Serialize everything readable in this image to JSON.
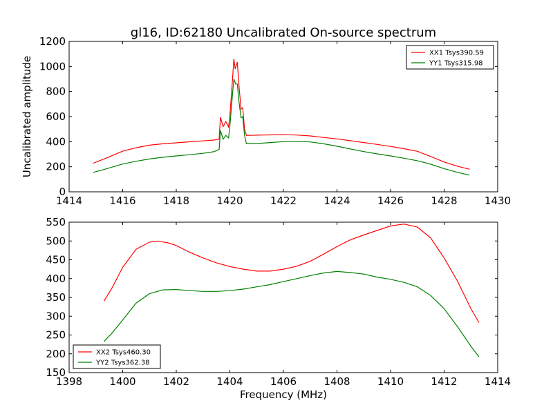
{
  "chart_data": [
    {
      "type": "line",
      "title": "gl16, ID:62180 Uncalibrated On-source spectrum",
      "ylabel": "Uncalibrated amplitude",
      "xlabel": "",
      "xlim": [
        1414,
        1430
      ],
      "ylim": [
        0,
        1200
      ],
      "xticks": [
        1414,
        1416,
        1418,
        1420,
        1422,
        1424,
        1426,
        1428,
        1430
      ],
      "yticks": [
        0,
        200,
        400,
        600,
        800,
        1000,
        1200
      ],
      "grid": false,
      "legend": "top-right",
      "series": [
        {
          "name": "XX1 Tsys390.59",
          "color": "#ff0000",
          "points": [
            [
              1414.9,
              228
            ],
            [
              1415.3,
              262
            ],
            [
              1415.7,
              298
            ],
            [
              1416.0,
              324
            ],
            [
              1416.5,
              352
            ],
            [
              1417.0,
              372
            ],
            [
              1417.5,
              383
            ],
            [
              1418.0,
              391
            ],
            [
              1418.5,
              399
            ],
            [
              1419.0,
              406
            ],
            [
              1419.4,
              413
            ],
            [
              1419.6,
              420
            ],
            [
              1419.65,
              595
            ],
            [
              1419.75,
              520
            ],
            [
              1419.85,
              560
            ],
            [
              1419.95,
              518
            ],
            [
              1420.0,
              600
            ],
            [
              1420.1,
              900
            ],
            [
              1420.15,
              1060
            ],
            [
              1420.2,
              980
            ],
            [
              1420.28,
              1035
            ],
            [
              1420.35,
              820
            ],
            [
              1420.42,
              660
            ],
            [
              1420.48,
              670
            ],
            [
              1420.55,
              500
            ],
            [
              1420.62,
              450
            ],
            [
              1421.0,
              452
            ],
            [
              1421.5,
              454
            ],
            [
              1422.0,
              456
            ],
            [
              1422.5,
              453
            ],
            [
              1423.0,
              446
            ],
            [
              1423.5,
              434
            ],
            [
              1424.0,
              422
            ],
            [
              1424.5,
              408
            ],
            [
              1425.0,
              393
            ],
            [
              1425.5,
              378
            ],
            [
              1426.0,
              362
            ],
            [
              1426.5,
              344
            ],
            [
              1427.0,
              323
            ],
            [
              1427.5,
              282
            ],
            [
              1428.0,
              238
            ],
            [
              1428.5,
              204
            ],
            [
              1428.95,
              180
            ]
          ]
        },
        {
          "name": "YY1 Tsys315.98",
          "color": "#008000",
          "points": [
            [
              1414.9,
              155
            ],
            [
              1415.3,
              178
            ],
            [
              1415.7,
              203
            ],
            [
              1416.0,
              222
            ],
            [
              1416.5,
              244
            ],
            [
              1417.0,
              262
            ],
            [
              1417.5,
              276
            ],
            [
              1418.0,
              286
            ],
            [
              1418.5,
              296
            ],
            [
              1419.0,
              307
            ],
            [
              1419.4,
              320
            ],
            [
              1419.6,
              338
            ],
            [
              1419.65,
              490
            ],
            [
              1419.75,
              420
            ],
            [
              1419.85,
              450
            ],
            [
              1419.95,
              430
            ],
            [
              1420.0,
              520
            ],
            [
              1420.1,
              780
            ],
            [
              1420.15,
              900
            ],
            [
              1420.22,
              860
            ],
            [
              1420.28,
              860
            ],
            [
              1420.35,
              700
            ],
            [
              1420.42,
              590
            ],
            [
              1420.48,
              600
            ],
            [
              1420.55,
              450
            ],
            [
              1420.62,
              383
            ],
            [
              1421.0,
              385
            ],
            [
              1421.5,
              393
            ],
            [
              1422.0,
              400
            ],
            [
              1422.5,
              403
            ],
            [
              1423.0,
              398
            ],
            [
              1423.5,
              383
            ],
            [
              1424.0,
              364
            ],
            [
              1424.5,
              342
            ],
            [
              1425.0,
              321
            ],
            [
              1425.5,
              303
            ],
            [
              1426.0,
              286
            ],
            [
              1426.5,
              268
            ],
            [
              1427.0,
              248
            ],
            [
              1427.5,
              220
            ],
            [
              1428.0,
              185
            ],
            [
              1428.5,
              155
            ],
            [
              1428.95,
              133
            ]
          ]
        }
      ]
    },
    {
      "type": "line",
      "title": "",
      "xlabel": "Frequency (MHz)",
      "ylabel": "",
      "xlim": [
        1398,
        1414
      ],
      "ylim": [
        150,
        550
      ],
      "xticks": [
        1398,
        1400,
        1402,
        1404,
        1406,
        1408,
        1410,
        1412,
        1414
      ],
      "yticks": [
        150,
        200,
        250,
        300,
        350,
        400,
        450,
        500,
        550
      ],
      "grid": false,
      "legend": "bottom-left",
      "series": [
        {
          "name": "XX2 Tsys460.30",
          "color": "#ff0000",
          "points": [
            [
              1399.3,
              340
            ],
            [
              1399.6,
              375
            ],
            [
              1400.0,
              430
            ],
            [
              1400.5,
              478
            ],
            [
              1401.0,
              497
            ],
            [
              1401.3,
              500
            ],
            [
              1401.7,
              495
            ],
            [
              1402.0,
              488
            ],
            [
              1402.5,
              470
            ],
            [
              1403.0,
              455
            ],
            [
              1403.5,
              442
            ],
            [
              1404.0,
              432
            ],
            [
              1404.5,
              425
            ],
            [
              1405.0,
              420
            ],
            [
              1405.5,
              420
            ],
            [
              1406.0,
              425
            ],
            [
              1406.5,
              433
            ],
            [
              1407.0,
              446
            ],
            [
              1407.5,
              465
            ],
            [
              1408.0,
              485
            ],
            [
              1408.5,
              503
            ],
            [
              1409.0,
              516
            ],
            [
              1409.5,
              528
            ],
            [
              1410.0,
              540
            ],
            [
              1410.5,
              545
            ],
            [
              1411.0,
              537
            ],
            [
              1411.5,
              508
            ],
            [
              1412.0,
              455
            ],
            [
              1412.5,
              393
            ],
            [
              1413.0,
              320
            ],
            [
              1413.3,
              283
            ]
          ]
        },
        {
          "name": "YY2 Tsys362.38",
          "color": "#008000",
          "points": [
            [
              1399.3,
              233
            ],
            [
              1399.6,
              255
            ],
            [
              1400.0,
              290
            ],
            [
              1400.5,
              335
            ],
            [
              1401.0,
              360
            ],
            [
              1401.5,
              370
            ],
            [
              1402.0,
              371
            ],
            [
              1402.5,
              368
            ],
            [
              1403.0,
              366
            ],
            [
              1403.5,
              366
            ],
            [
              1404.0,
              368
            ],
            [
              1404.5,
              372
            ],
            [
              1405.0,
              378
            ],
            [
              1405.5,
              384
            ],
            [
              1406.0,
              392
            ],
            [
              1406.5,
              400
            ],
            [
              1407.0,
              408
            ],
            [
              1407.5,
              415
            ],
            [
              1408.0,
              419
            ],
            [
              1408.5,
              416
            ],
            [
              1409.0,
              412
            ],
            [
              1409.5,
              404
            ],
            [
              1410.0,
              398
            ],
            [
              1410.5,
              390
            ],
            [
              1411.0,
              378
            ],
            [
              1411.5,
              355
            ],
            [
              1412.0,
              320
            ],
            [
              1412.5,
              272
            ],
            [
              1413.0,
              220
            ],
            [
              1413.3,
              192
            ]
          ]
        }
      ]
    }
  ]
}
